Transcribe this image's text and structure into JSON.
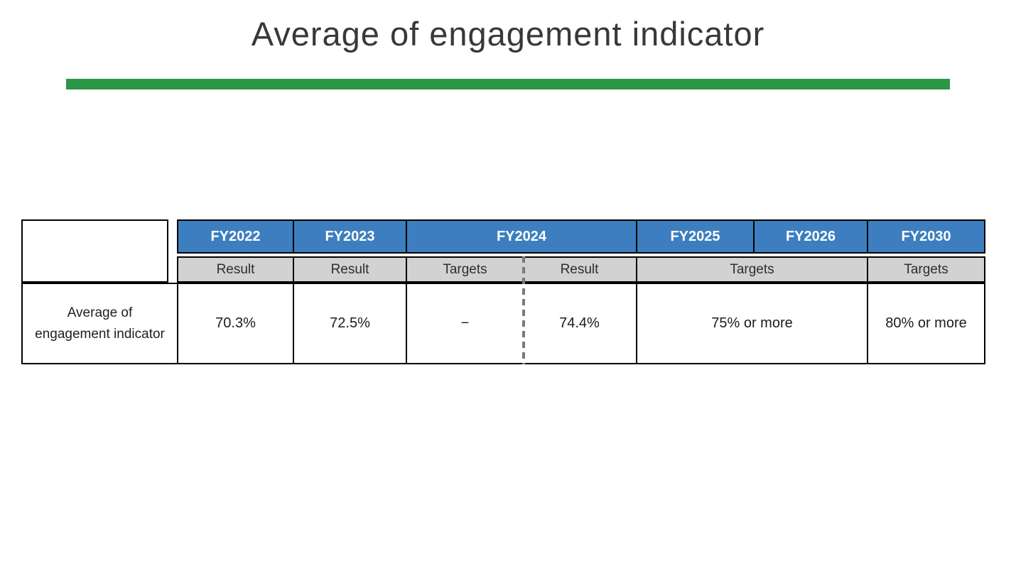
{
  "slide": {
    "title": "Average of engagement indicator"
  },
  "colors": {
    "accent_green": "#2A9646",
    "header_blue": "#3D7EC0",
    "subheader_gray": "#D2D2D2",
    "border_black": "#000000",
    "dash_gray": "#7A7A7A",
    "title_text": "#383838"
  },
  "table": {
    "years": [
      "FY2022",
      "FY2023",
      "FY2024",
      "FY2025",
      "FY2026",
      "FY2030"
    ],
    "sub_headers": {
      "fy2022": "Result",
      "fy2023": "Result",
      "fy2024_left": "Targets",
      "fy2024_right": "Result",
      "fy2025_fy2026": "Targets",
      "fy2030": "Targets"
    },
    "row_label": "Average of engagement indicator",
    "values": {
      "fy2022_result": "70.3%",
      "fy2023_result": "72.5%",
      "fy2024_targets": "−",
      "fy2024_result": "74.4%",
      "fy2025_fy2026_targets": "75% or more",
      "fy2030_targets": "80% or more"
    }
  }
}
